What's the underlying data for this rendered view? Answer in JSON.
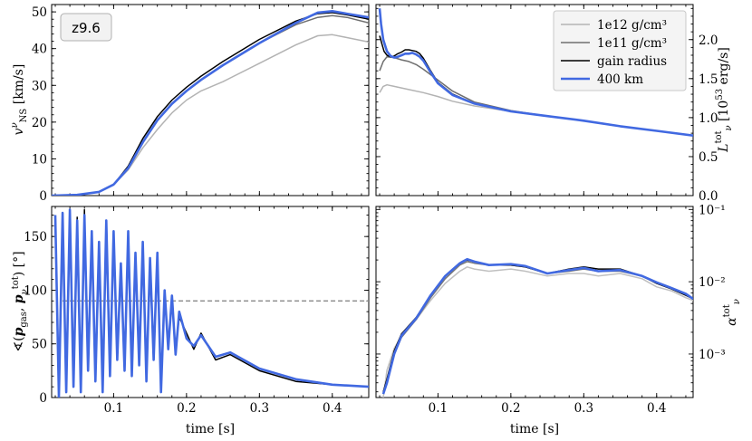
{
  "chart_data": [
    {
      "type": "line",
      "panel": "top-left",
      "ylabel": "v_NS^ν [km/s]",
      "xlim": [
        0.015,
        0.45
      ],
      "ylim": [
        0,
        52
      ],
      "yticks": [
        0,
        10,
        20,
        30,
        40,
        50
      ],
      "xticks": [
        0.1,
        0.2,
        0.3,
        0.4
      ],
      "annotation": "z9.6",
      "series": [
        {
          "name": "1e12 g/cm^3",
          "color": "#b3b3b3",
          "x": [
            0.015,
            0.05,
            0.08,
            0.1,
            0.12,
            0.14,
            0.16,
            0.18,
            0.2,
            0.22,
            0.25,
            0.3,
            0.35,
            0.38,
            0.4,
            0.42,
            0.45
          ],
          "y": [
            0,
            0.2,
            1,
            3,
            7,
            13,
            18,
            22.5,
            26,
            28.5,
            31,
            36,
            41,
            43.5,
            43.8,
            43,
            41.8
          ]
        },
        {
          "name": "1e11 g/cm^3",
          "color": "#6e6e6e",
          "x": [
            0.015,
            0.05,
            0.08,
            0.1,
            0.12,
            0.14,
            0.16,
            0.18,
            0.2,
            0.22,
            0.25,
            0.3,
            0.35,
            0.38,
            0.4,
            0.42,
            0.45
          ],
          "y": [
            0,
            0.2,
            1,
            3,
            7.5,
            14.5,
            20.5,
            25,
            28.5,
            31.5,
            35.5,
            41.5,
            46.5,
            48.5,
            49,
            48.5,
            47
          ]
        },
        {
          "name": "gain radius",
          "color": "#000000",
          "x": [
            0.015,
            0.05,
            0.08,
            0.1,
            0.12,
            0.14,
            0.16,
            0.18,
            0.2,
            0.22,
            0.25,
            0.3,
            0.35,
            0.38,
            0.4,
            0.42,
            0.45
          ],
          "y": [
            0,
            0.2,
            1,
            3,
            8,
            15.5,
            21.5,
            26,
            29.5,
            32.5,
            36.5,
            42.5,
            47.5,
            49.5,
            49.8,
            49.2,
            48
          ]
        },
        {
          "name": "400 km",
          "color": "#4169e1",
          "x": [
            0.015,
            0.05,
            0.08,
            0.1,
            0.12,
            0.14,
            0.16,
            0.18,
            0.2,
            0.22,
            0.25,
            0.3,
            0.35,
            0.38,
            0.4,
            0.42,
            0.45
          ],
          "y": [
            0,
            0.2,
            1,
            3,
            7.5,
            14.5,
            20.5,
            25,
            28.5,
            31.5,
            35.5,
            41.5,
            47,
            49.8,
            50.2,
            49.5,
            48.5
          ]
        }
      ]
    },
    {
      "type": "line",
      "panel": "top-right",
      "ylabel": "L_ν^tot [10^53 erg/s]",
      "xlim": [
        0.015,
        0.45
      ],
      "ylim": [
        0,
        2.45
      ],
      "yticks": [
        0.0,
        0.5,
        1.0,
        1.5,
        2.0
      ],
      "ytick_labels": [
        "0.0",
        "0.5",
        "1.0",
        "1.5",
        "2.0"
      ],
      "xticks": [
        0.1,
        0.2,
        0.3,
        0.4
      ],
      "legend": {
        "placement": "top-right",
        "entries": [
          "1e12 g/cm³",
          "1e11 g/cm³",
          "gain radius",
          "400 km"
        ]
      },
      "series": [
        {
          "name": "1e12 g/cm^3",
          "color": "#b3b3b3",
          "x": [
            0.02,
            0.025,
            0.03,
            0.04,
            0.06,
            0.08,
            0.1,
            0.12,
            0.15,
            0.2,
            0.25,
            0.3,
            0.35,
            0.4,
            0.45
          ],
          "y": [
            1.32,
            1.4,
            1.42,
            1.4,
            1.36,
            1.32,
            1.27,
            1.21,
            1.15,
            1.08,
            1.02,
            0.96,
            0.89,
            0.83,
            0.77
          ]
        },
        {
          "name": "1e11 g/cm^3",
          "color": "#6e6e6e",
          "x": [
            0.02,
            0.025,
            0.03,
            0.04,
            0.05,
            0.06,
            0.07,
            0.08,
            0.1,
            0.12,
            0.15,
            0.2,
            0.25,
            0.3,
            0.35,
            0.4,
            0.45
          ],
          "y": [
            1.6,
            1.72,
            1.78,
            1.77,
            1.74,
            1.72,
            1.68,
            1.62,
            1.48,
            1.34,
            1.2,
            1.09,
            1.02,
            0.96,
            0.89,
            0.83,
            0.77
          ]
        },
        {
          "name": "gain radius",
          "color": "#000000",
          "x": [
            0.02,
            0.023,
            0.026,
            0.03,
            0.035,
            0.04,
            0.045,
            0.05,
            0.055,
            0.06,
            0.065,
            0.07,
            0.075,
            0.08,
            0.09,
            0.1,
            0.12,
            0.15,
            0.2,
            0.25,
            0.3,
            0.35,
            0.4,
            0.45
          ],
          "y": [
            2.05,
            1.95,
            1.85,
            1.8,
            1.78,
            1.79,
            1.82,
            1.84,
            1.87,
            1.87,
            1.86,
            1.85,
            1.82,
            1.76,
            1.6,
            1.45,
            1.3,
            1.18,
            1.08,
            1.02,
            0.96,
            0.89,
            0.83,
            0.77
          ]
        },
        {
          "name": "400 km",
          "color": "#4169e1",
          "x": [
            0.02,
            0.022,
            0.025,
            0.03,
            0.035,
            0.04,
            0.045,
            0.05,
            0.055,
            0.06,
            0.065,
            0.07,
            0.075,
            0.08,
            0.09,
            0.1,
            0.12,
            0.15,
            0.2,
            0.25,
            0.3,
            0.35,
            0.4,
            0.45
          ],
          "y": [
            2.4,
            2.2,
            2.0,
            1.85,
            1.79,
            1.77,
            1.78,
            1.8,
            1.82,
            1.82,
            1.83,
            1.81,
            1.78,
            1.73,
            1.58,
            1.44,
            1.29,
            1.18,
            1.08,
            1.02,
            0.96,
            0.89,
            0.83,
            0.77
          ]
        }
      ]
    },
    {
      "type": "line",
      "panel": "bottom-left",
      "xlabel": "time [s]",
      "ylabel": "∢(p_gas, p_ν^tot) [°]",
      "xlim": [
        0.015,
        0.45
      ],
      "ylim": [
        0,
        178
      ],
      "yticks": [
        0,
        50,
        100,
        150
      ],
      "xticks": [
        0.1,
        0.2,
        0.3,
        0.4
      ],
      "xtick_labels": [
        "0.1",
        "0.2",
        "0.3",
        "0.4"
      ],
      "reference_line": {
        "y": 90,
        "style": "dashed",
        "color": "#888888"
      },
      "series": [
        {
          "name": "gain radius",
          "color": "#000000",
          "x": [
            0.02,
            0.025,
            0.03,
            0.035,
            0.04,
            0.045,
            0.05,
            0.055,
            0.06,
            0.065,
            0.07,
            0.075,
            0.08,
            0.085,
            0.09,
            0.095,
            0.1,
            0.105,
            0.11,
            0.115,
            0.12,
            0.125,
            0.13,
            0.135,
            0.14,
            0.145,
            0.15,
            0.155,
            0.16,
            0.165,
            0.17,
            0.175,
            0.18,
            0.185,
            0.19,
            0.2,
            0.21,
            0.22,
            0.24,
            0.26,
            0.3,
            0.35,
            0.4,
            0.45
          ],
          "y": [
            160,
            5,
            170,
            10,
            172,
            15,
            168,
            8,
            175,
            30,
            150,
            20,
            140,
            10,
            160,
            25,
            150,
            40,
            120,
            30,
            150,
            25,
            130,
            35,
            140,
            20,
            125,
            40,
            130,
            10,
            95,
            50,
            90,
            45,
            75,
            60,
            45,
            60,
            35,
            40,
            25,
            15,
            12,
            10
          ]
        },
        {
          "name": "400 km",
          "color": "#4169e1",
          "x": [
            0.02,
            0.025,
            0.03,
            0.035,
            0.04,
            0.045,
            0.05,
            0.055,
            0.06,
            0.065,
            0.07,
            0.075,
            0.08,
            0.085,
            0.09,
            0.095,
            0.1,
            0.105,
            0.11,
            0.115,
            0.12,
            0.125,
            0.13,
            0.135,
            0.14,
            0.145,
            0.15,
            0.155,
            0.16,
            0.165,
            0.17,
            0.175,
            0.18,
            0.185,
            0.19,
            0.2,
            0.21,
            0.22,
            0.24,
            0.26,
            0.3,
            0.35,
            0.4,
            0.45
          ],
          "y": [
            170,
            0,
            172,
            5,
            175,
            10,
            165,
            5,
            170,
            25,
            155,
            15,
            145,
            5,
            165,
            20,
            155,
            35,
            125,
            25,
            155,
            20,
            135,
            30,
            145,
            15,
            130,
            35,
            135,
            5,
            100,
            45,
            95,
            40,
            80,
            55,
            48,
            58,
            38,
            42,
            27,
            17,
            12,
            10
          ]
        }
      ]
    },
    {
      "type": "line",
      "panel": "bottom-right",
      "xlabel": "time [s]",
      "ylabel": "α_ν^tot",
      "yscale": "log",
      "xlim": [
        0.015,
        0.45
      ],
      "ylim": [
        0.00025,
        0.11
      ],
      "xticks": [
        0.1,
        0.2,
        0.3,
        0.4
      ],
      "xtick_labels": [
        "0.1",
        "0.2",
        "0.3",
        "0.4"
      ],
      "yticks": [
        0.001,
        0.01,
        0.1
      ],
      "ytick_labels": [
        "10⁻³",
        "10⁻²",
        "10⁻¹"
      ],
      "series": [
        {
          "name": "1e12 g/cm^3",
          "color": "#c0c0c0",
          "x": [
            0.02,
            0.025,
            0.03,
            0.04,
            0.05,
            0.07,
            0.09,
            0.11,
            0.13,
            0.14,
            0.15,
            0.17,
            0.2,
            0.22,
            0.25,
            0.28,
            0.3,
            0.32,
            0.35,
            0.38,
            0.4,
            0.42,
            0.44,
            0.45
          ],
          "y": [
            0.0002,
            0.00025,
            0.0006,
            0.0012,
            0.0018,
            0.003,
            0.0055,
            0.0095,
            0.014,
            0.016,
            0.015,
            0.014,
            0.015,
            0.014,
            0.012,
            0.013,
            0.013,
            0.012,
            0.013,
            0.011,
            0.0085,
            0.0075,
            0.006,
            0.0055
          ]
        },
        {
          "name": "1e11 g/cm^3",
          "color": "#777777",
          "x": [
            0.025,
            0.03,
            0.04,
            0.05,
            0.07,
            0.09,
            0.11,
            0.13,
            0.14,
            0.15,
            0.17,
            0.2,
            0.22,
            0.25,
            0.28,
            0.3,
            0.32,
            0.35,
            0.38,
            0.4,
            0.42,
            0.44,
            0.45
          ],
          "y": [
            0.0003,
            0.0004,
            0.001,
            0.0017,
            0.003,
            0.006,
            0.011,
            0.017,
            0.019,
            0.018,
            0.017,
            0.017,
            0.016,
            0.013,
            0.014,
            0.015,
            0.014,
            0.014,
            0.012,
            0.0095,
            0.008,
            0.0065,
            0.0058
          ]
        },
        {
          "name": "gain radius",
          "color": "#000000",
          "x": [
            0.025,
            0.03,
            0.04,
            0.05,
            0.07,
            0.09,
            0.11,
            0.13,
            0.14,
            0.15,
            0.17,
            0.2,
            0.22,
            0.25,
            0.28,
            0.3,
            0.32,
            0.35,
            0.38,
            0.4,
            0.42,
            0.44,
            0.45
          ],
          "y": [
            0.0003,
            0.00045,
            0.0011,
            0.0019,
            0.0032,
            0.0065,
            0.012,
            0.018,
            0.02,
            0.019,
            0.017,
            0.017,
            0.016,
            0.013,
            0.015,
            0.016,
            0.015,
            0.015,
            0.012,
            0.0095,
            0.008,
            0.0065,
            0.0058
          ]
        },
        {
          "name": "400 km",
          "color": "#4169e1",
          "x": [
            0.025,
            0.03,
            0.04,
            0.05,
            0.07,
            0.09,
            0.11,
            0.13,
            0.14,
            0.15,
            0.17,
            0.2,
            0.22,
            0.25,
            0.28,
            0.3,
            0.32,
            0.35,
            0.38,
            0.4,
            0.42,
            0.44,
            0.45
          ],
          "y": [
            0.00028,
            0.0004,
            0.001,
            0.0018,
            0.0031,
            0.0065,
            0.012,
            0.018,
            0.0205,
            0.019,
            0.017,
            0.0175,
            0.0165,
            0.013,
            0.0145,
            0.0155,
            0.014,
            0.0145,
            0.012,
            0.0098,
            0.0082,
            0.0068,
            0.0058
          ]
        }
      ]
    }
  ]
}
